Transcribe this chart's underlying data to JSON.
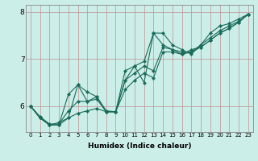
{
  "bg_color": "#cceee8",
  "line_color": "#1a6b5a",
  "grid_color": "#c09090",
  "xlabel": "Humidex (Indice chaleur)",
  "xlim": [
    -0.5,
    23.5
  ],
  "ylim": [
    5.45,
    8.15
  ],
  "yticks": [
    6,
    7,
    8
  ],
  "xticks": [
    0,
    1,
    2,
    3,
    4,
    5,
    6,
    7,
    8,
    9,
    10,
    11,
    12,
    13,
    14,
    15,
    16,
    17,
    18,
    19,
    20,
    21,
    22,
    23
  ],
  "series": [
    [
      6.0,
      5.75,
      5.6,
      5.6,
      6.25,
      6.45,
      6.3,
      6.2,
      5.9,
      5.88,
      6.75,
      6.85,
      6.95,
      7.55,
      7.55,
      7.3,
      7.2,
      7.1,
      7.3,
      7.55,
      7.7,
      7.75,
      7.85,
      7.95
    ],
    [
      6.0,
      5.78,
      5.62,
      5.62,
      5.9,
      6.1,
      6.1,
      6.15,
      5.88,
      5.88,
      6.55,
      6.7,
      6.85,
      6.75,
      7.25,
      7.2,
      7.15,
      7.15,
      7.3,
      7.45,
      7.6,
      7.7,
      7.8,
      7.95
    ],
    [
      6.0,
      5.75,
      5.6,
      5.6,
      5.75,
      5.85,
      5.9,
      5.95,
      5.88,
      5.88,
      6.35,
      6.55,
      6.7,
      6.6,
      7.15,
      7.15,
      7.1,
      7.15,
      7.25,
      7.4,
      7.55,
      7.65,
      7.78,
      7.95
    ],
    [
      6.0,
      5.75,
      5.6,
      5.65,
      5.75,
      6.45,
      6.1,
      6.2,
      5.88,
      5.88,
      6.55,
      6.85,
      6.5,
      7.55,
      7.3,
      7.2,
      7.1,
      7.2,
      7.25,
      7.4,
      7.55,
      7.65,
      7.78,
      7.95
    ]
  ],
  "marker": "D",
  "markersize": 2.2,
  "linewidth": 0.8,
  "xlabel_fontsize": 6.5,
  "xlabel_fontweight": "bold",
  "tick_fontsize_x": 5,
  "tick_fontsize_y": 6.5
}
